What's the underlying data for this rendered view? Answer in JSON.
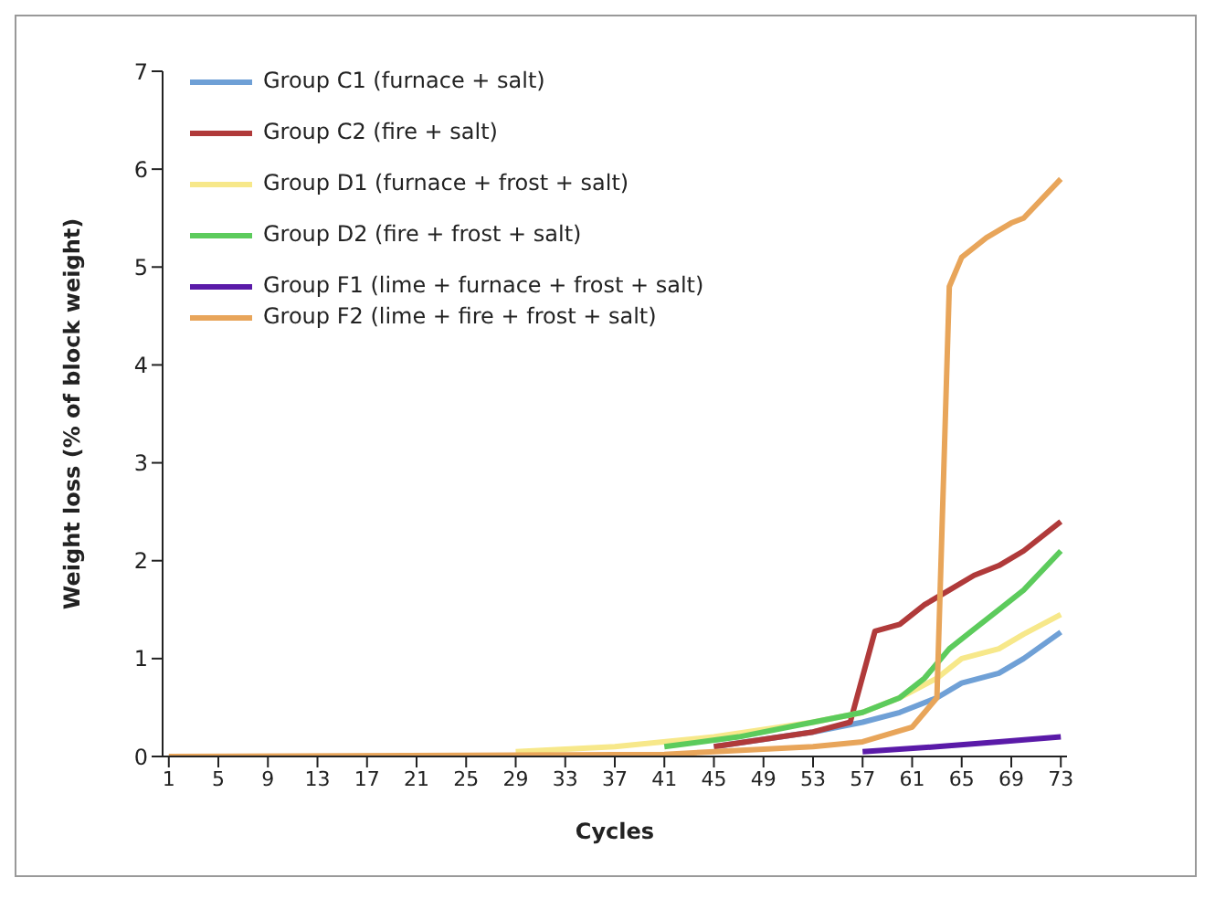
{
  "chart_data": {
    "type": "line",
    "xlabel": "Cycles",
    "ylabel": "Weight loss (% of block weight)",
    "xlim": [
      0.5,
      73.5
    ],
    "xticks": [
      1,
      5,
      9,
      13,
      17,
      21,
      25,
      29,
      33,
      37,
      41,
      45,
      49,
      53,
      57,
      61,
      65,
      69,
      73
    ],
    "ylim": [
      0,
      7
    ],
    "yticks": [
      0,
      1,
      2,
      3,
      4,
      5,
      6,
      7
    ],
    "legend": "top left",
    "marker": "none",
    "line_style": "solid",
    "series": [
      {
        "name": "Group C1 (furnace + salt)",
        "color": "#6fa0d6",
        "x": [
          45,
          53,
          57,
          60,
          63,
          65,
          68,
          70,
          73
        ],
        "values": [
          0.1,
          0.25,
          0.35,
          0.45,
          0.6,
          0.75,
          0.85,
          1.0,
          1.27
        ]
      },
      {
        "name": "Group C2 (fire + salt)",
        "color": "#b03a3a",
        "x": [
          45,
          53,
          56,
          58,
          60,
          62,
          64,
          66,
          68,
          70,
          73
        ],
        "values": [
          0.1,
          0.25,
          0.35,
          1.28,
          1.35,
          1.55,
          1.7,
          1.85,
          1.95,
          2.1,
          2.4
        ]
      },
      {
        "name": "Group D1 (furnace + frost + salt)",
        "color": "#f7e88a",
        "x": [
          29,
          37,
          45,
          53,
          57,
          60,
          63,
          65,
          68,
          70,
          73
        ],
        "values": [
          0.05,
          0.1,
          0.2,
          0.35,
          0.45,
          0.6,
          0.8,
          1.0,
          1.1,
          1.25,
          1.45
        ]
      },
      {
        "name": "Group D2 (fire + frost + salt)",
        "color": "#5ccb5c",
        "x": [
          41,
          47,
          53,
          57,
          60,
          62,
          64,
          66,
          68,
          70,
          73
        ],
        "values": [
          0.1,
          0.2,
          0.35,
          0.45,
          0.6,
          0.8,
          1.1,
          1.3,
          1.5,
          1.7,
          2.1
        ]
      },
      {
        "name": "Group F1 (lime + furnace + frost + salt)",
        "color": "#5a1aa8",
        "x": [
          57,
          63,
          68,
          73
        ],
        "values": [
          0.05,
          0.1,
          0.15,
          0.2
        ]
      },
      {
        "name": "Group F2 (lime + fire + frost + salt)",
        "color": "#e8a55a",
        "x": [
          1,
          41,
          45,
          53,
          57,
          61,
          63,
          64,
          65,
          67,
          69,
          70,
          73
        ],
        "values": [
          0,
          0.02,
          0.05,
          0.1,
          0.15,
          0.3,
          0.6,
          4.8,
          5.1,
          5.3,
          5.45,
          5.5,
          5.9
        ]
      }
    ]
  }
}
